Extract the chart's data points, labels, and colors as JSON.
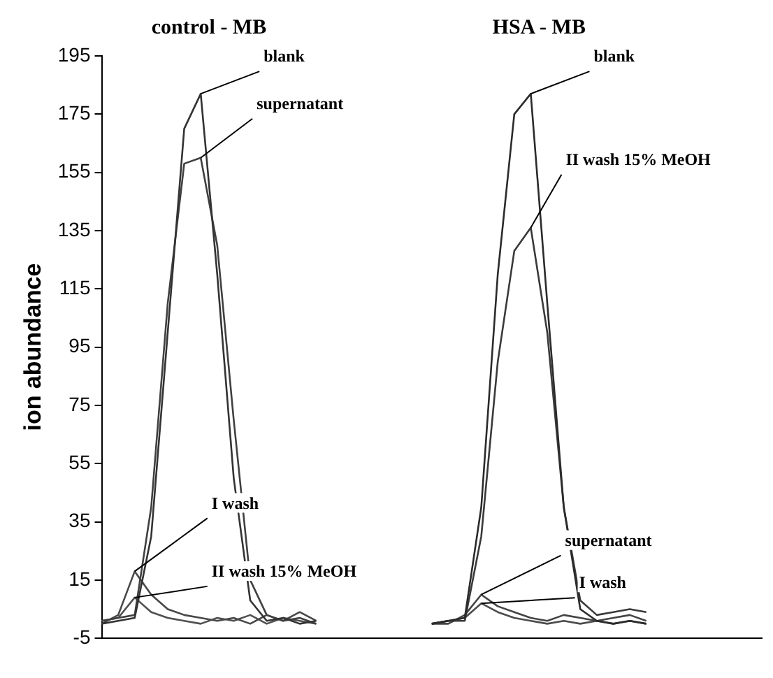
{
  "chart_data": {
    "type": "line",
    "ylabel": "ion abundance",
    "annotations": [
      "control - MB",
      "HSA - MB"
    ],
    "categories": [
      null,
      null,
      null,
      null,
      null,
      null,
      null,
      null,
      null,
      null,
      null,
      null,
      null,
      null,
      null,
      null,
      null,
      null,
      null,
      null,
      null,
      null,
      null,
      null,
      null,
      null,
      null,
      null,
      null,
      null,
      null,
      null,
      null,
      null,
      null,
      null,
      null,
      null,
      null,
      null,
      null
    ],
    "ylim": [
      -5,
      195
    ],
    "yticks": [
      -5,
      15,
      35,
      55,
      75,
      95,
      115,
      135,
      155,
      175,
      195
    ],
    "marker": "none",
    "legend": false,
    "series": [
      {
        "name": "blank",
        "color": "#333333",
        "values": [
          0,
          1,
          2,
          30,
          100,
          170,
          182,
          120,
          50,
          8,
          1,
          2,
          0,
          1,
          null,
          null,
          null,
          null,
          null,
          null,
          null,
          null,
          null,
          null,
          null,
          null,
          null,
          null,
          null,
          null,
          null,
          null,
          null,
          null,
          null,
          null,
          null,
          null,
          null,
          null,
          null
        ]
      },
      {
        "name": "supernatant",
        "color": "#404040",
        "values": [
          1,
          2,
          3,
          40,
          110,
          158,
          160,
          130,
          70,
          15,
          3,
          1,
          2,
          0,
          null,
          null,
          null,
          null,
          null,
          null,
          null,
          null,
          null,
          null,
          null,
          null,
          null,
          null,
          null,
          null,
          null,
          null,
          null,
          null,
          null,
          null,
          null,
          null,
          null,
          null,
          null
        ]
      },
      {
        "name": "I wash",
        "color": "#484848",
        "values": [
          0,
          3,
          18,
          10,
          5,
          3,
          2,
          1,
          2,
          0,
          3,
          1,
          4,
          1,
          null,
          null,
          null,
          null,
          null,
          null,
          null,
          null,
          null,
          null,
          null,
          null,
          null,
          null,
          null,
          null,
          null,
          null,
          null,
          null,
          null,
          null,
          null,
          null,
          null,
          null,
          null
        ]
      },
      {
        "name": "II wash 15% MeOH",
        "color": "#505050",
        "values": [
          1,
          2,
          9,
          4,
          2,
          1,
          0,
          2,
          1,
          3,
          0,
          2,
          1,
          0,
          null,
          null,
          null,
          null,
          null,
          null,
          null,
          null,
          null,
          null,
          null,
          null,
          null,
          null,
          null,
          null,
          null,
          null,
          null,
          null,
          null,
          null,
          null,
          null,
          null,
          null,
          null
        ]
      },
      {
        "name": "blank",
        "color": "#2b2b2b",
        "values": [
          null,
          null,
          null,
          null,
          null,
          null,
          null,
          null,
          null,
          null,
          null,
          null,
          null,
          null,
          null,
          null,
          null,
          null,
          null,
          null,
          0,
          1,
          2,
          40,
          120,
          175,
          182,
          110,
          40,
          5,
          1,
          0,
          1,
          0,
          null,
          null,
          null,
          null,
          null,
          null,
          null
        ]
      },
      {
        "name": "II wash 15% MeOH",
        "color": "#3a3a3a",
        "values": [
          null,
          null,
          null,
          null,
          null,
          null,
          null,
          null,
          null,
          null,
          null,
          null,
          null,
          null,
          null,
          null,
          null,
          null,
          null,
          null,
          0,
          1,
          1,
          30,
          90,
          128,
          136,
          100,
          40,
          8,
          3,
          4,
          5,
          4,
          null,
          null,
          null,
          null,
          null,
          null,
          null
        ]
      },
      {
        "name": "supernatant",
        "color": "#444444",
        "values": [
          null,
          null,
          null,
          null,
          null,
          null,
          null,
          null,
          null,
          null,
          null,
          null,
          null,
          null,
          null,
          null,
          null,
          null,
          null,
          null,
          0,
          0,
          3,
          10,
          6,
          4,
          2,
          1,
          3,
          2,
          1,
          2,
          3,
          1,
          null,
          null,
          null,
          null,
          null,
          null,
          null
        ]
      },
      {
        "name": "I wash",
        "color": "#4c4c4c",
        "values": [
          null,
          null,
          null,
          null,
          null,
          null,
          null,
          null,
          null,
          null,
          null,
          null,
          null,
          null,
          null,
          null,
          null,
          null,
          null,
          null,
          0,
          1,
          2,
          7,
          4,
          2,
          1,
          0,
          1,
          0,
          1,
          0,
          1,
          0,
          null,
          null,
          null,
          null,
          null,
          null,
          null
        ]
      }
    ]
  }
}
